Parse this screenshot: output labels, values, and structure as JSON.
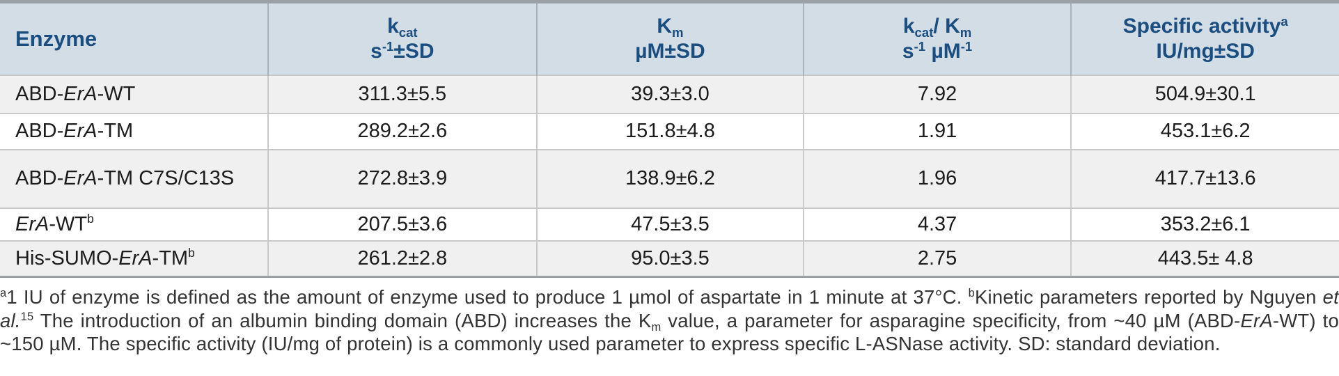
{
  "colors": {
    "header_bg": "#d3dde6",
    "header_text": "#1b4e80",
    "row_alt_bg": "#f0f0f0",
    "row_plain_bg": "#ffffff",
    "outer_border": "#9aa0a4",
    "grid_line": "#c9c9c9",
    "body_text": "#1c1c1c",
    "footnote_text": "#333333"
  },
  "header": {
    "enzyme": "Enzyme",
    "kcat_line1": [
      {
        "t": "k"
      },
      {
        "t": "cat",
        "m": "sub"
      }
    ],
    "kcat_line2": [
      {
        "t": "s"
      },
      {
        "t": "-1",
        "m": "sup"
      },
      {
        "t": "±SD"
      }
    ],
    "km_line1": [
      {
        "t": "K"
      },
      {
        "t": "m",
        "m": "sub"
      }
    ],
    "km_line2": [
      {
        "t": "µM±SD"
      }
    ],
    "ratio_line1": [
      {
        "t": "k"
      },
      {
        "t": "cat",
        "m": "sub"
      },
      {
        "t": "/ K"
      },
      {
        "t": "m",
        "m": "sub"
      }
    ],
    "ratio_line2": [
      {
        "t": "s"
      },
      {
        "t": "-1",
        "m": "sup"
      },
      {
        "t": " µM"
      },
      {
        "t": "-1",
        "m": "sup"
      }
    ],
    "sa_line1": [
      {
        "t": "Specific activity"
      },
      {
        "t": "a",
        "m": "sup"
      }
    ],
    "sa_line2": [
      {
        "t": "IU/mg±SD"
      }
    ]
  },
  "rows": [
    {
      "name": [
        {
          "t": "ABD-"
        },
        {
          "t": "ErA",
          "m": "i"
        },
        {
          "t": "-WT"
        }
      ],
      "kcat": "311.3±5.5",
      "km": "39.3±3.0",
      "ratio": "7.92",
      "sa": "504.9±30.1"
    },
    {
      "name": [
        {
          "t": "ABD-"
        },
        {
          "t": "ErA",
          "m": "i"
        },
        {
          "t": "-TM"
        }
      ],
      "kcat": "289.2±2.6",
      "km": "151.8±4.8",
      "ratio": "1.91",
      "sa": "453.1±6.2"
    },
    {
      "name": [
        {
          "t": "ABD-"
        },
        {
          "t": "ErA",
          "m": "i"
        },
        {
          "t": "-TM C7S/C13S"
        }
      ],
      "kcat": "272.8±3.9",
      "km": "138.9±6.2",
      "ratio": "1.96",
      "sa": "417.7±13.6"
    },
    {
      "name": [
        {
          "t": "ErA",
          "m": "i"
        },
        {
          "t": "-WT"
        },
        {
          "t": "b",
          "m": "sup"
        }
      ],
      "kcat": "207.5±3.6",
      "km": "47.5±3.5",
      "ratio": "4.37",
      "sa": "353.2±6.1"
    },
    {
      "name": [
        {
          "t": "His-SUMO-"
        },
        {
          "t": "ErA",
          "m": "i"
        },
        {
          "t": "-TM"
        },
        {
          "t": "b",
          "m": "sup"
        }
      ],
      "kcat": "261.2±2.8",
      "km": "95.0±3.5",
      "ratio": "2.75",
      "sa": "443.5± 4.8"
    }
  ],
  "footnote": {
    "segments": [
      {
        "t": "a",
        "m": "sup"
      },
      {
        "t": "1 IU of enzyme is defined as the amount of enzyme used to produce 1 µmol of aspartate in 1 minute at 37°C. "
      },
      {
        "t": "b",
        "m": "sup"
      },
      {
        "t": "Kinetic parameters reported by Nguyen "
      },
      {
        "t": "et al.",
        "m": "i"
      },
      {
        "t": "15",
        "m": "sup"
      },
      {
        "t": " The introduction of an albumin binding domain (ABD) increases the K"
      },
      {
        "t": "m",
        "m": "sub"
      },
      {
        "t": " value, a parameter for asparagine specificity, from ~40 µM (ABD-"
      },
      {
        "t": "ErA",
        "m": "i"
      },
      {
        "t": "-WT) to ~150 µM. The specific activity (IU/mg of protein) is a commonly used parameter to express specific L-ASNase activity. SD: standard deviation."
      }
    ]
  }
}
